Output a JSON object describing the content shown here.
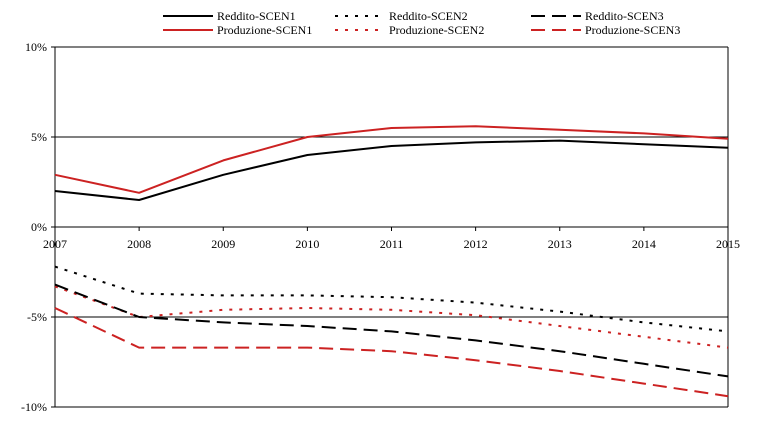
{
  "chart_data": {
    "type": "line",
    "x": [
      "2007",
      "2008",
      "2009",
      "2010",
      "2011",
      "2012",
      "2013",
      "2014",
      "2015"
    ],
    "ylim": [
      -10,
      10
    ],
    "yticks": [
      -10,
      -5,
      0,
      5,
      10
    ],
    "ytick_labels": [
      "-10%",
      "-5%",
      "0%",
      "5%",
      "10%"
    ],
    "grid": "horizontal lines at 5% and -5%",
    "legend_position": "top",
    "series": [
      {
        "name": "Reddito-SCEN1",
        "color": "#000000",
        "dash": "solid",
        "values": [
          2.0,
          1.5,
          2.9,
          4.0,
          4.5,
          4.7,
          4.8,
          4.6,
          4.4
        ]
      },
      {
        "name": "Produzione-SCEN1",
        "color": "#cc2222",
        "dash": "solid",
        "values": [
          2.9,
          1.9,
          3.7,
          5.0,
          5.5,
          5.6,
          5.4,
          5.2,
          4.9
        ]
      },
      {
        "name": "Reddito-SCEN2",
        "color": "#000000",
        "dash": "dotted",
        "values": [
          -2.2,
          -3.7,
          -3.8,
          -3.8,
          -3.9,
          -4.2,
          -4.7,
          -5.3,
          -5.8
        ]
      },
      {
        "name": "Produzione-SCEN2",
        "color": "#cc2222",
        "dash": "dotted",
        "values": [
          -3.3,
          -5.0,
          -4.6,
          -4.5,
          -4.6,
          -4.9,
          -5.5,
          -6.1,
          -6.7
        ]
      },
      {
        "name": "Reddito-SCEN3",
        "color": "#000000",
        "dash": "dashed",
        "values": [
          -3.2,
          -5.0,
          -5.3,
          -5.5,
          -5.8,
          -6.3,
          -6.9,
          -7.6,
          -8.3
        ]
      },
      {
        "name": "Produzione-SCEN3",
        "color": "#cc2222",
        "dash": "dashed",
        "values": [
          -4.5,
          -6.7,
          -6.7,
          -6.7,
          -6.9,
          -7.4,
          -8.0,
          -8.7,
          -9.4
        ]
      }
    ],
    "legend_order": [
      "Reddito-SCEN1",
      "Reddito-SCEN2",
      "Reddito-SCEN3",
      "Produzione-SCEN1",
      "Produzione-SCEN2",
      "Produzione-SCEN3"
    ]
  }
}
